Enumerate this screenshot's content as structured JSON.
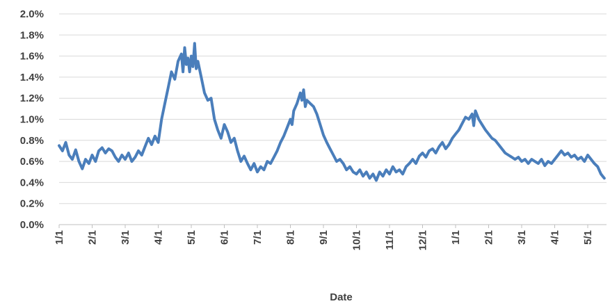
{
  "chart_data": {
    "type": "line",
    "title": "",
    "xlabel": "Date",
    "ylabel": "",
    "x_tick_labels": [
      "1/1",
      "2/1",
      "3/1",
      "4/1",
      "5/1",
      "6/1",
      "7/1",
      "8/1",
      "9/1",
      "10/1",
      "11/1",
      "12/1",
      "1/1",
      "2/1",
      "3/1",
      "4/1",
      "5/1"
    ],
    "y_tick_labels": [
      "0.0%",
      "0.2%",
      "0.4%",
      "0.6%",
      "0.8%",
      "1.0%",
      "1.2%",
      "1.4%",
      "1.6%",
      "1.8%",
      "2.0%"
    ],
    "ylim": [
      0,
      2.0
    ],
    "x_unit": "months since 1/1 (first year)",
    "xlim": [
      0,
      16.5
    ],
    "grid": true,
    "legend": "none",
    "series": [
      {
        "color": "#4a7ebb",
        "points": [
          [
            0.0,
            0.75
          ],
          [
            0.1,
            0.7
          ],
          [
            0.2,
            0.78
          ],
          [
            0.3,
            0.66
          ],
          [
            0.4,
            0.62
          ],
          [
            0.5,
            0.71
          ],
          [
            0.6,
            0.6
          ],
          [
            0.7,
            0.53
          ],
          [
            0.8,
            0.62
          ],
          [
            0.9,
            0.58
          ],
          [
            1.0,
            0.66
          ],
          [
            1.1,
            0.6
          ],
          [
            1.2,
            0.7
          ],
          [
            1.3,
            0.73
          ],
          [
            1.4,
            0.68
          ],
          [
            1.5,
            0.72
          ],
          [
            1.6,
            0.7
          ],
          [
            1.7,
            0.64
          ],
          [
            1.8,
            0.6
          ],
          [
            1.9,
            0.66
          ],
          [
            2.0,
            0.62
          ],
          [
            2.1,
            0.68
          ],
          [
            2.2,
            0.6
          ],
          [
            2.3,
            0.64
          ],
          [
            2.4,
            0.7
          ],
          [
            2.5,
            0.66
          ],
          [
            2.6,
            0.74
          ],
          [
            2.7,
            0.82
          ],
          [
            2.8,
            0.76
          ],
          [
            2.9,
            0.84
          ],
          [
            3.0,
            0.78
          ],
          [
            3.1,
            1.0
          ],
          [
            3.2,
            1.15
          ],
          [
            3.3,
            1.3
          ],
          [
            3.4,
            1.45
          ],
          [
            3.5,
            1.38
          ],
          [
            3.6,
            1.55
          ],
          [
            3.7,
            1.62
          ],
          [
            3.75,
            1.45
          ],
          [
            3.8,
            1.68
          ],
          [
            3.85,
            1.52
          ],
          [
            3.9,
            1.58
          ],
          [
            3.95,
            1.45
          ],
          [
            4.0,
            1.6
          ],
          [
            4.05,
            1.5
          ],
          [
            4.1,
            1.72
          ],
          [
            4.15,
            1.48
          ],
          [
            4.2,
            1.55
          ],
          [
            4.3,
            1.4
          ],
          [
            4.4,
            1.25
          ],
          [
            4.5,
            1.18
          ],
          [
            4.6,
            1.2
          ],
          [
            4.7,
            1.0
          ],
          [
            4.8,
            0.9
          ],
          [
            4.9,
            0.82
          ],
          [
            5.0,
            0.95
          ],
          [
            5.1,
            0.88
          ],
          [
            5.2,
            0.78
          ],
          [
            5.3,
            0.82
          ],
          [
            5.4,
            0.7
          ],
          [
            5.5,
            0.6
          ],
          [
            5.6,
            0.65
          ],
          [
            5.7,
            0.58
          ],
          [
            5.8,
            0.52
          ],
          [
            5.9,
            0.58
          ],
          [
            6.0,
            0.5
          ],
          [
            6.1,
            0.55
          ],
          [
            6.2,
            0.52
          ],
          [
            6.3,
            0.6
          ],
          [
            6.4,
            0.58
          ],
          [
            6.5,
            0.64
          ],
          [
            6.6,
            0.7
          ],
          [
            6.7,
            0.78
          ],
          [
            6.8,
            0.84
          ],
          [
            6.9,
            0.92
          ],
          [
            7.0,
            1.0
          ],
          [
            7.05,
            0.95
          ],
          [
            7.1,
            1.08
          ],
          [
            7.2,
            1.15
          ],
          [
            7.25,
            1.2
          ],
          [
            7.3,
            1.25
          ],
          [
            7.35,
            1.18
          ],
          [
            7.4,
            1.28
          ],
          [
            7.45,
            1.12
          ],
          [
            7.5,
            1.18
          ],
          [
            7.6,
            1.15
          ],
          [
            7.7,
            1.12
          ],
          [
            7.8,
            1.05
          ],
          [
            7.9,
            0.95
          ],
          [
            8.0,
            0.85
          ],
          [
            8.1,
            0.78
          ],
          [
            8.2,
            0.72
          ],
          [
            8.3,
            0.66
          ],
          [
            8.4,
            0.6
          ],
          [
            8.5,
            0.62
          ],
          [
            8.6,
            0.58
          ],
          [
            8.7,
            0.52
          ],
          [
            8.8,
            0.55
          ],
          [
            8.9,
            0.5
          ],
          [
            9.0,
            0.48
          ],
          [
            9.1,
            0.52
          ],
          [
            9.2,
            0.46
          ],
          [
            9.3,
            0.5
          ],
          [
            9.4,
            0.44
          ],
          [
            9.5,
            0.48
          ],
          [
            9.6,
            0.42
          ],
          [
            9.7,
            0.5
          ],
          [
            9.8,
            0.46
          ],
          [
            9.9,
            0.52
          ],
          [
            10.0,
            0.48
          ],
          [
            10.1,
            0.55
          ],
          [
            10.2,
            0.5
          ],
          [
            10.3,
            0.52
          ],
          [
            10.4,
            0.48
          ],
          [
            10.5,
            0.55
          ],
          [
            10.6,
            0.58
          ],
          [
            10.7,
            0.62
          ],
          [
            10.8,
            0.58
          ],
          [
            10.9,
            0.65
          ],
          [
            11.0,
            0.68
          ],
          [
            11.1,
            0.64
          ],
          [
            11.2,
            0.7
          ],
          [
            11.3,
            0.72
          ],
          [
            11.4,
            0.68
          ],
          [
            11.5,
            0.74
          ],
          [
            11.6,
            0.78
          ],
          [
            11.7,
            0.72
          ],
          [
            11.8,
            0.76
          ],
          [
            11.9,
            0.82
          ],
          [
            12.0,
            0.86
          ],
          [
            12.1,
            0.9
          ],
          [
            12.2,
            0.96
          ],
          [
            12.3,
            1.02
          ],
          [
            12.4,
            1.0
          ],
          [
            12.5,
            1.05
          ],
          [
            12.55,
            0.94
          ],
          [
            12.6,
            1.08
          ],
          [
            12.7,
            1.0
          ],
          [
            12.8,
            0.95
          ],
          [
            12.9,
            0.9
          ],
          [
            13.0,
            0.86
          ],
          [
            13.1,
            0.82
          ],
          [
            13.2,
            0.8
          ],
          [
            13.3,
            0.76
          ],
          [
            13.4,
            0.72
          ],
          [
            13.5,
            0.68
          ],
          [
            13.6,
            0.66
          ],
          [
            13.7,
            0.64
          ],
          [
            13.8,
            0.62
          ],
          [
            13.9,
            0.64
          ],
          [
            14.0,
            0.6
          ],
          [
            14.1,
            0.62
          ],
          [
            14.2,
            0.58
          ],
          [
            14.3,
            0.62
          ],
          [
            14.4,
            0.6
          ],
          [
            14.5,
            0.58
          ],
          [
            14.6,
            0.62
          ],
          [
            14.7,
            0.56
          ],
          [
            14.8,
            0.6
          ],
          [
            14.9,
            0.58
          ],
          [
            15.0,
            0.62
          ],
          [
            15.1,
            0.66
          ],
          [
            15.2,
            0.7
          ],
          [
            15.3,
            0.66
          ],
          [
            15.4,
            0.68
          ],
          [
            15.5,
            0.64
          ],
          [
            15.6,
            0.66
          ],
          [
            15.7,
            0.62
          ],
          [
            15.8,
            0.64
          ],
          [
            15.9,
            0.6
          ],
          [
            16.0,
            0.66
          ],
          [
            16.1,
            0.62
          ],
          [
            16.2,
            0.58
          ],
          [
            16.3,
            0.55
          ],
          [
            16.4,
            0.48
          ],
          [
            16.5,
            0.44
          ]
        ]
      }
    ]
  }
}
